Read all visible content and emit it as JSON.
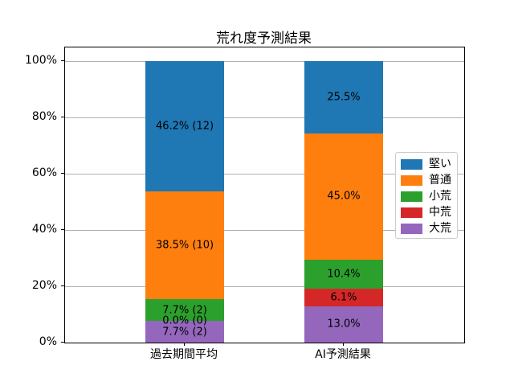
{
  "window": {
    "background": "#ffffff"
  },
  "chart_data": {
    "type": "bar",
    "stacked": true,
    "title": "荒れ度予測結果",
    "categories": [
      "過去期間平均",
      "AI予測結果"
    ],
    "series": [
      {
        "name": "堅い",
        "color": "#1f77b4",
        "values": [
          46.2,
          25.5
        ],
        "labels": [
          "46.2% (12)",
          "25.5%"
        ]
      },
      {
        "name": "普通",
        "color": "#ff7f0e",
        "values": [
          38.5,
          45.0
        ],
        "labels": [
          "38.5% (10)",
          "45.0%"
        ]
      },
      {
        "name": "小荒",
        "color": "#2ca02c",
        "values": [
          7.7,
          10.4
        ],
        "labels": [
          "7.7% (2)",
          "10.4%"
        ]
      },
      {
        "name": "中荒",
        "color": "#d62728",
        "values": [
          0.0,
          6.1
        ],
        "labels": [
          "0.0% (0)",
          "6.1%"
        ]
      },
      {
        "name": "大荒",
        "color": "#9467bd",
        "values": [
          7.7,
          13.0
        ],
        "labels": [
          "7.7% (2)",
          "13.0%"
        ]
      }
    ],
    "y_ticks": [
      {
        "value": 0,
        "label": "0%"
      },
      {
        "value": 20,
        "label": "20%"
      },
      {
        "value": 40,
        "label": "40%"
      },
      {
        "value": 60,
        "label": "60%"
      },
      {
        "value": 80,
        "label": "80%"
      },
      {
        "value": 100,
        "label": "100%"
      }
    ],
    "ylim": [
      0,
      105
    ],
    "grid": true,
    "grid_color": "#b0b0b0",
    "legend_position": "right-inside",
    "legend_order_top_to_bottom": [
      "堅い",
      "普通",
      "小荒",
      "中荒",
      "大荒"
    ],
    "stack_order_bottom_to_top": [
      "大荒",
      "中荒",
      "小荒",
      "普通",
      "堅い"
    ]
  }
}
